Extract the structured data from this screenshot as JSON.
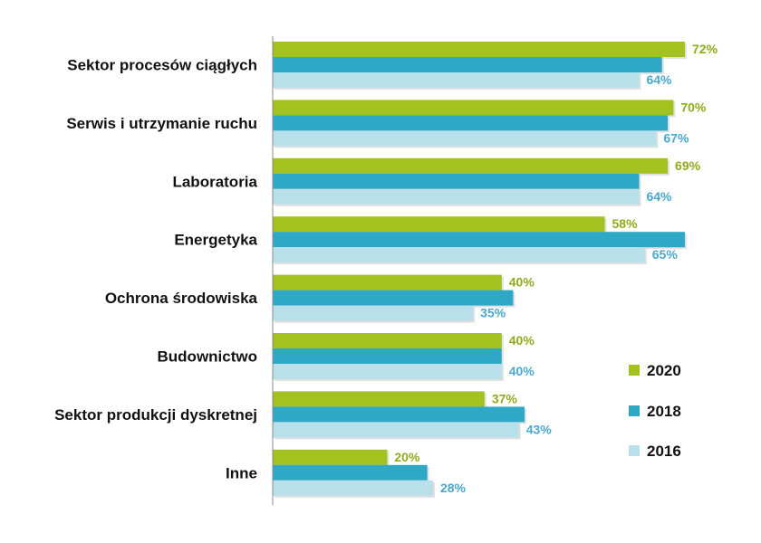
{
  "chart_data": {
    "type": "bar",
    "orientation": "horizontal",
    "categories": [
      "Sektor procesów ciągłych",
      "Serwis i utrzymanie ruchu",
      "Laboratoria",
      "Energetyka",
      "Ochrona środowiska",
      "Budownictwo",
      "Sektor produkcji dyskretnej",
      "Inne"
    ],
    "series": [
      {
        "name": "2020",
        "color": "#a3c21f",
        "label_color": "#8eab1c",
        "values": [
          72,
          70,
          69,
          58,
          40,
          40,
          37,
          20
        ],
        "labels": [
          "72%",
          "70%",
          "69%",
          "58%",
          "40%",
          "40%",
          "37%",
          "20%"
        ]
      },
      {
        "name": "2018",
        "color": "#2fa8c6",
        "label_color": "#2fa8c6",
        "values": [
          68,
          69,
          64,
          72,
          42,
          40,
          44,
          27
        ],
        "labels": []
      },
      {
        "name": "2016",
        "color": "#b9e0ea",
        "label_color": "#4aa8cb",
        "values": [
          64,
          67,
          64,
          65,
          35,
          40,
          43,
          28
        ],
        "labels": [
          "64%",
          "67%",
          "64%",
          "65%",
          "35%",
          "40%",
          "43%",
          "28%"
        ]
      }
    ],
    "xlim": [
      0,
      75
    ],
    "legend": {
      "position": "right",
      "items": [
        "2020",
        "2018",
        "2016"
      ]
    },
    "grid": false
  }
}
